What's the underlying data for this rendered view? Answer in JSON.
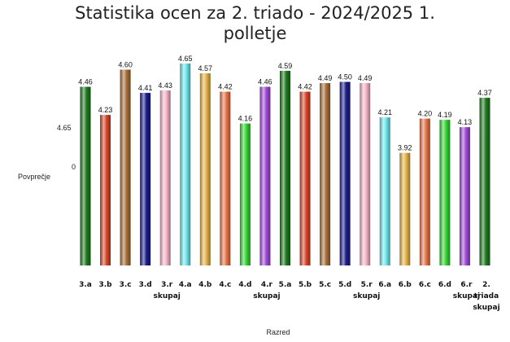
{
  "chart_data": {
    "type": "bar",
    "title": "Statistika ocen za 2. triado - 2024/2025 1. polletje",
    "title_lines": [
      "Statistika ocen za 2. triado - 2024/2025 1.",
      "polletje"
    ],
    "xlabel": "Razred",
    "ylabel": "Povprečje",
    "y_tick_labels": [
      "4.65",
      "0"
    ],
    "legend": "none",
    "grid": false,
    "categories": [
      "3.a",
      "3.b",
      "3.c",
      "3.d",
      "3.r skupaj",
      "4.a",
      "4.b",
      "4.c",
      "4.d",
      "4.r skupaj",
      "5.a",
      "5.b",
      "5.c",
      "5.d",
      "5.r skupaj",
      "6.a",
      "6.b",
      "6.c",
      "6.d",
      "6.r skupaj",
      "2. triada skupaj"
    ],
    "category_lines": [
      [
        "3.a"
      ],
      [
        "3.b"
      ],
      [
        "3.c"
      ],
      [
        "3.d"
      ],
      [
        "3.r",
        "skupaj"
      ],
      [
        "4.a"
      ],
      [
        "4.b"
      ],
      [
        "4.c"
      ],
      [
        "4.d"
      ],
      [
        "4.r",
        "skupaj"
      ],
      [
        "5.a"
      ],
      [
        "5.b"
      ],
      [
        "5.c"
      ],
      [
        "5.d"
      ],
      [
        "5.r",
        "skupaj"
      ],
      [
        "6.a"
      ],
      [
        "6.b"
      ],
      [
        "6.c"
      ],
      [
        "6.d"
      ],
      [
        "6.r",
        "skupaj"
      ],
      [
        "2.",
        "triada",
        "skupaj"
      ]
    ],
    "values": [
      4.46,
      4.23,
      4.6,
      4.41,
      4.43,
      4.65,
      4.57,
      4.42,
      4.16,
      4.46,
      4.59,
      4.42,
      4.49,
      4.5,
      4.49,
      4.21,
      3.92,
      4.2,
      4.19,
      4.13,
      4.37
    ],
    "value_labels": [
      "4.46",
      "4.23",
      "4.60",
      "4.41",
      "4.43",
      "4.65",
      "4.57",
      "4.42",
      "4.16",
      "4.46",
      "4.59",
      "4.42",
      "4.49",
      "4.50",
      "4.49",
      "4.21",
      "3.92",
      "4.20",
      "4.19",
      "4.13",
      "4.37"
    ],
    "colors": [
      "#1f7a1f",
      "#d9462a",
      "#a8703a",
      "#1c1c8c",
      "#f7b6c8",
      "#6fe8ee",
      "#e7b54a",
      "#e8754a",
      "#35d635",
      "#a24ad9",
      "#1f7a1f",
      "#d9462a",
      "#a8703a",
      "#1c1c8c",
      "#f7b6c8",
      "#6fe8ee",
      "#e7b54a",
      "#e8754a",
      "#35d635",
      "#a24ad9",
      "#1f7a1f"
    ]
  }
}
